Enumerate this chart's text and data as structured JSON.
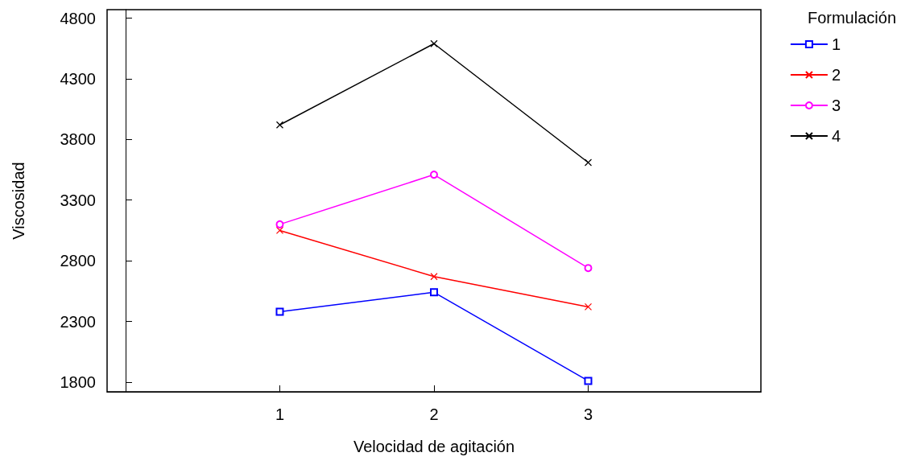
{
  "chart_data": {
    "type": "line",
    "xlabel": "Velocidad de agitación",
    "ylabel": "Viscosidad",
    "legend_title": "Formulación",
    "x": [
      1,
      2,
      3
    ],
    "xlim": [
      -0.12,
      4.12
    ],
    "xticks": [
      1,
      2,
      3
    ],
    "ylim": [
      1720,
      4870
    ],
    "yticks": [
      1800,
      2300,
      2800,
      3300,
      3800,
      4300,
      4800
    ],
    "grid": false,
    "legend": "top right",
    "series": [
      {
        "name": "1",
        "color": "#0000ff",
        "marker": "square",
        "values": [
          2380,
          2540,
          1810
        ]
      },
      {
        "name": "2",
        "color": "#ff0000",
        "marker": "cross",
        "values": [
          3050,
          2670,
          2420
        ]
      },
      {
        "name": "3",
        "color": "#ff00ff",
        "marker": "circle",
        "values": [
          3100,
          3510,
          2740
        ]
      },
      {
        "name": "4",
        "color": "#000000",
        "marker": "cross",
        "values": [
          3920,
          4590,
          3610
        ]
      }
    ]
  }
}
